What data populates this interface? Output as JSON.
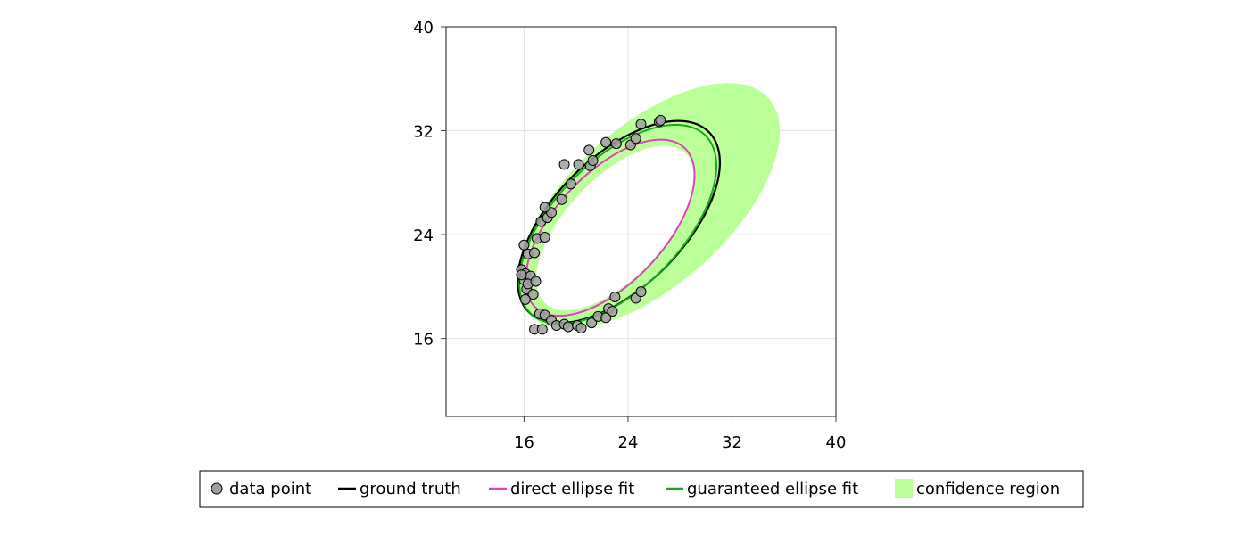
{
  "chart_data": {
    "type": "scatter",
    "title": "",
    "xlabel": "",
    "ylabel": "",
    "xlim": [
      10,
      40
    ],
    "ylim": [
      10,
      40
    ],
    "xticks": [
      16,
      24,
      32,
      40
    ],
    "yticks": [
      16,
      24,
      32,
      40
    ],
    "grid": true,
    "legend_position": "bottom",
    "colors": {
      "points": "#a0a0a0",
      "ground_truth": "#000000",
      "direct_fit": "#e040c0",
      "guaranteed_fit": "#1aa81a",
      "confidence": "#bbff99"
    },
    "legend": [
      {
        "key": "points",
        "label": "data point"
      },
      {
        "key": "ground_truth",
        "label": "ground truth"
      },
      {
        "key": "direct_fit",
        "label": "direct ellipse fit"
      },
      {
        "key": "guaranteed_fit",
        "label": "guaranteed ellipse fit"
      },
      {
        "key": "confidence",
        "label": "confidence region"
      }
    ],
    "points": [
      [
        15.8,
        21.3
      ],
      [
        16.0,
        20.5
      ],
      [
        16.2,
        19.8
      ],
      [
        16.1,
        21.0
      ],
      [
        16.5,
        20.8
      ],
      [
        16.3,
        20.2
      ],
      [
        16.7,
        19.4
      ],
      [
        16.9,
        20.4
      ],
      [
        16.1,
        19.0
      ],
      [
        16.0,
        23.2
      ],
      [
        16.3,
        22.5
      ],
      [
        16.8,
        22.6
      ],
      [
        17.0,
        23.7
      ],
      [
        17.6,
        23.8
      ],
      [
        17.3,
        25.0
      ],
      [
        17.8,
        25.3
      ],
      [
        18.1,
        25.7
      ],
      [
        17.6,
        26.1
      ],
      [
        18.9,
        26.7
      ],
      [
        19.1,
        29.4
      ],
      [
        19.6,
        27.9
      ],
      [
        20.2,
        29.4
      ],
      [
        21.1,
        29.3
      ],
      [
        21.0,
        30.5
      ],
      [
        21.3,
        29.7
      ],
      [
        22.3,
        31.1
      ],
      [
        23.1,
        31.0
      ],
      [
        24.2,
        30.9
      ],
      [
        24.6,
        31.4
      ],
      [
        25.0,
        32.5
      ],
      [
        26.4,
        32.7
      ],
      [
        26.5,
        32.8
      ],
      [
        16.8,
        16.7
      ],
      [
        17.2,
        17.9
      ],
      [
        17.4,
        16.7
      ],
      [
        17.6,
        17.8
      ],
      [
        18.1,
        17.4
      ],
      [
        18.5,
        17.0
      ],
      [
        19.1,
        17.1
      ],
      [
        19.4,
        16.9
      ],
      [
        20.1,
        17.0
      ],
      [
        20.4,
        16.8
      ],
      [
        21.2,
        17.2
      ],
      [
        21.7,
        17.7
      ],
      [
        22.3,
        17.6
      ],
      [
        22.5,
        18.3
      ],
      [
        22.8,
        18.1
      ],
      [
        23.0,
        19.2
      ],
      [
        24.6,
        19.1
      ],
      [
        25.0,
        19.6
      ],
      [
        15.8,
        20.9
      ]
    ],
    "ellipses": {
      "ground_truth": {
        "cx": 23.29,
        "cy": 24.97,
        "a": 9.8,
        "b": 5.0,
        "angle_deg": 45
      },
      "guaranteed_fit": {
        "cx": 23.22,
        "cy": 24.79,
        "a": 9.6,
        "b": 4.9,
        "angle_deg": 45.5
      },
      "direct_fit": {
        "cx": 22.62,
        "cy": 24.53,
        "a": 8.4,
        "b": 4.2,
        "angle_deg": 47
      }
    },
    "confidence_region": {
      "outer": {
        "cx": 25.6,
        "cy": 26.2,
        "a": 12.4,
        "b": 6.1,
        "angle_deg": 42
      },
      "inner": {
        "cx": 23.0,
        "cy": 24.5,
        "a": 7.9,
        "b": 3.8,
        "angle_deg": 47
      }
    }
  }
}
